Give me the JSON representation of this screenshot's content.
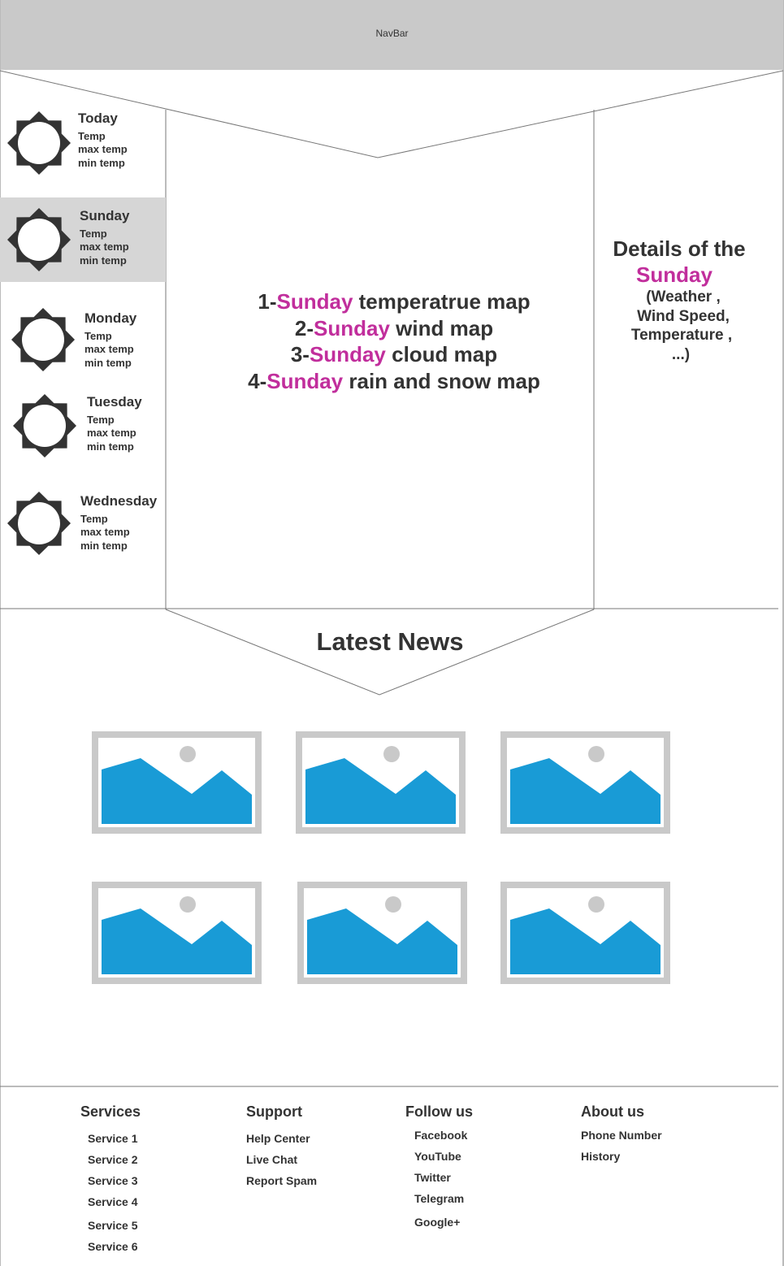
{
  "navbar": {
    "label": "NavBar"
  },
  "sidebar": {
    "days": [
      {
        "name": "Today",
        "temp": "Temp",
        "max": "max temp",
        "min": "min  temp",
        "selected": false
      },
      {
        "name": "Sunday",
        "temp": "Temp",
        "max": "max temp",
        "min": "min  temp",
        "selected": true
      },
      {
        "name": "Monday",
        "temp": "Temp",
        "max": "max temp",
        "min": "min  temp",
        "selected": false
      },
      {
        "name": "Tuesday",
        "temp": "Temp",
        "max": "max temp",
        "min": "min  temp",
        "selected": false
      },
      {
        "name": "Wednesday",
        "temp": "Temp",
        "max": "max temp",
        "min": "min  temp",
        "selected": false
      }
    ]
  },
  "maps": {
    "day": "Sunday",
    "items": [
      {
        "prefix": "1-",
        "suffix": " temperatrue map"
      },
      {
        "prefix": "2-",
        "suffix": " wind map"
      },
      {
        "prefix": "3-",
        "suffix": " cloud map"
      },
      {
        "prefix": "4-",
        "suffix": " rain and snow map"
      }
    ]
  },
  "details": {
    "title": "Details of the",
    "day": "Sunday",
    "lines": [
      "(Weather ,",
      "Wind Speed,",
      "Temperature ,",
      "...)"
    ]
  },
  "news": {
    "title": "Latest News",
    "thumbnail_count": 6
  },
  "footer": {
    "services": {
      "heading": "Services",
      "links": [
        "Service 1",
        "Service 2",
        "Service 3",
        "Service 4",
        "Service 5",
        "Service 6"
      ]
    },
    "support": {
      "heading": "Support",
      "links": [
        "Help Center",
        "Live Chat",
        "Report Spam"
      ]
    },
    "follow": {
      "heading": "Follow us",
      "links": [
        "Facebook",
        "YouTube",
        "Twitter",
        "Telegram",
        "Google+"
      ]
    },
    "about": {
      "heading": "About us",
      "links": [
        "Phone Number",
        "History"
      ]
    }
  },
  "colors": {
    "accent": "#c12e9c",
    "navbar": "#c9c9c9",
    "selected_day": "#d6d6d6",
    "image_frame": "#c9c9c9",
    "image_mountain": "#199bd6",
    "text": "#333333"
  },
  "icons": {
    "day": "sun-icon",
    "news": "image-placeholder-icon"
  }
}
